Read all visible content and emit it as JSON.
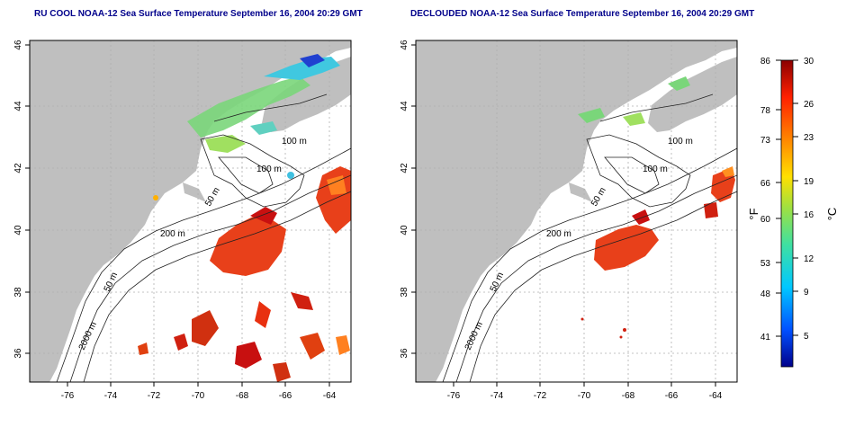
{
  "panels": [
    {
      "title": "RU COOL NOAA-12 Sea Surface Temperature September 16, 2004 20:29 GMT",
      "x_ticks": [
        "-76",
        "-74",
        "-72",
        "-70",
        "-68",
        "-66",
        "-64"
      ],
      "y_ticks": [
        "36",
        "38",
        "40",
        "42",
        "44",
        "46"
      ],
      "contour_labels": [
        "100 m",
        "100 m",
        "50 m",
        "200 m",
        "50 m",
        "2000 m"
      ]
    },
    {
      "title": "DECLOUDED NOAA-12 Sea Surface Temperature September 16, 2004 20:29 GMT",
      "x_ticks": [
        "-76",
        "-74",
        "-72",
        "-70",
        "-68",
        "-66",
        "-64"
      ],
      "y_ticks": [
        "36",
        "38",
        "40",
        "42",
        "44",
        "46"
      ],
      "contour_labels": [
        "100 m",
        "100 m",
        "50 m",
        "200 m",
        "50 m",
        "2000 m"
      ]
    }
  ],
  "colorbar": {
    "fahrenheit_label": "°F",
    "celsius_label": "°C",
    "fahrenheit_ticks": [
      "86",
      "78",
      "73",
      "66",
      "60",
      "53",
      "48",
      "41"
    ],
    "celsius_ticks": [
      "30",
      "26",
      "23",
      "19",
      "16",
      "12",
      "9",
      "5"
    ]
  },
  "colors": {
    "land": "#bfbfbf",
    "ocean": "#ffffff",
    "title": "#00008b",
    "warm_sst": "#e8401a",
    "hot_sst": "#c81010",
    "cool_sst": "#7ad67a"
  }
}
